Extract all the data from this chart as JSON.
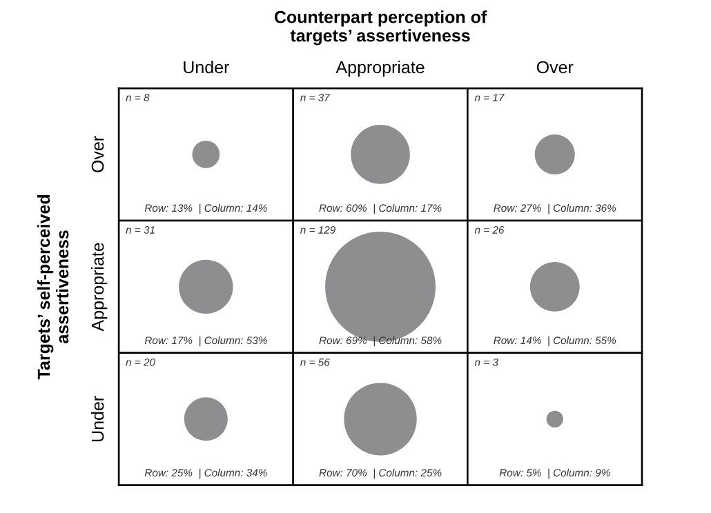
{
  "chart_data": {
    "type": "heatmap",
    "xlabel": "Counterpart perception of\ntargets’ assertiveness",
    "ylabel": "Targets’ self-perceived\nassertiveness",
    "categories": [
      "Under",
      "Appropriate",
      "Over"
    ],
    "y_categories": [
      "Over",
      "Appropriate",
      "Under"
    ],
    "cells": [
      [
        8,
        37,
        17
      ],
      [
        31,
        129,
        26
      ],
      [
        20,
        56,
        3
      ]
    ],
    "cell_labels": [
      [
        "n = 8",
        "n = 37",
        "n = 17"
      ],
      [
        "n = 31",
        "n = 129",
        "n = 26"
      ],
      [
        "n = 20",
        "n = 56",
        "n = 3"
      ]
    ],
    "annotations": [
      "Row: 13%  | Column: 14%",
      "Row: 60%  | Column: 17%",
      "Row: 27%  | Column: 36%",
      "Row: 17%  | Column: 53%",
      "Row: 69%  | Column: 58%",
      "Row: 14%  | Column: 55%",
      "Row: 25%  | Column: 34%",
      "Row: 70%  | Column: 25%",
      "Row: 5%  | Column: 9%"
    ],
    "color": "#8e8e91"
  }
}
